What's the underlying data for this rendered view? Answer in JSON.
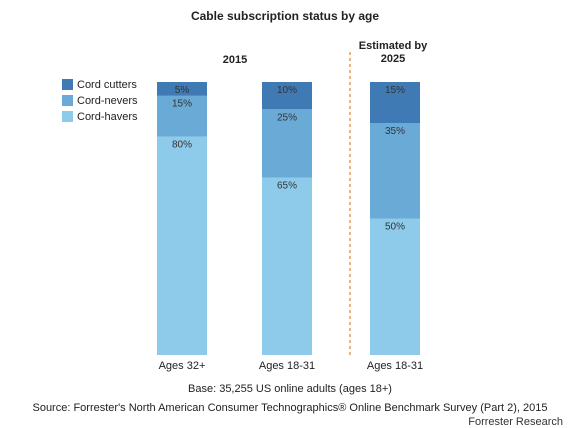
{
  "chart_data": {
    "type": "bar",
    "stacked": true,
    "title": "Cable subscription status by age",
    "groups": [
      {
        "label": "2015",
        "categories": [
          "Ages 32+",
          "Ages 18-31"
        ]
      },
      {
        "label": "Estimated by\n2025",
        "categories": [
          "Ages 18-31"
        ]
      }
    ],
    "categories": [
      "Ages 32+",
      "Ages 18-31",
      "Ages 18-31"
    ],
    "series": [
      {
        "name": "Cord-havers",
        "values": [
          80,
          65,
          50
        ],
        "labels": [
          "80%",
          "65%",
          "50%"
        ],
        "color": "#8ecbea"
      },
      {
        "name": "Cord-nevers",
        "values": [
          15,
          25,
          35
        ],
        "labels": [
          "15%",
          "25%",
          "35%"
        ],
        "color": "#6aaad6"
      },
      {
        "name": "Cord cutters",
        "values": [
          5,
          10,
          15
        ],
        "labels": [
          "5%",
          "10%",
          "15%"
        ],
        "color": "#3f7ab5"
      }
    ],
    "legend": {
      "placement": "top-left",
      "order": [
        "Cord cutters",
        "Cord-nevers",
        "Cord-havers"
      ]
    },
    "ylim": [
      0,
      100
    ],
    "xlabel": "",
    "ylabel": "",
    "grid": false,
    "divider_color": "#e08a3c"
  },
  "footnotes": {
    "base": "Base: 35,255 US online adults (ages 18+)",
    "source": "Source: Forrester's North American Consumer Technographics® Online Benchmark Survey (Part 2), 2015"
  },
  "credit": "Forrester Research"
}
